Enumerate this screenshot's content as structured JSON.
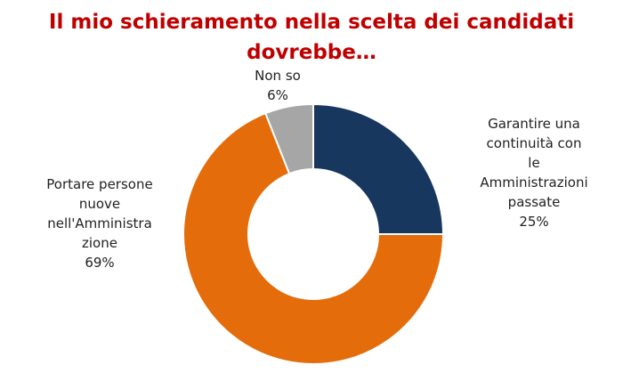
{
  "chart_data": {
    "type": "pie",
    "donut": true,
    "title_lines": [
      "Il mio schieramento nella scelta dei candidati",
      "dovrebbe…"
    ],
    "title": "Il mio schieramento nella scelta dei candidati dovrebbe…",
    "title_color": "#c00000",
    "start_angle_deg": 0,
    "direction": "clockwise",
    "slices": [
      {
        "label_lines": [
          "Garantire una",
          "continuità con",
          "le",
          "Amministrazioni",
          "passate"
        ],
        "label": "Garantire una continuità con le Amministrazioni passate",
        "value": 25,
        "value_label": "25%",
        "color": "#17375e"
      },
      {
        "label_lines": [
          "Portare persone",
          "nuove",
          "nell'Amministra",
          "zione"
        ],
        "label": "Portare persone nuove nell'Amministrazione",
        "value": 69,
        "value_label": "69%",
        "color": "#e46c0a"
      },
      {
        "label_lines": [
          "Non so"
        ],
        "label": "Non so",
        "value": 6,
        "value_label": "6%",
        "color": "#a6a6a6"
      }
    ],
    "legend": "none"
  }
}
